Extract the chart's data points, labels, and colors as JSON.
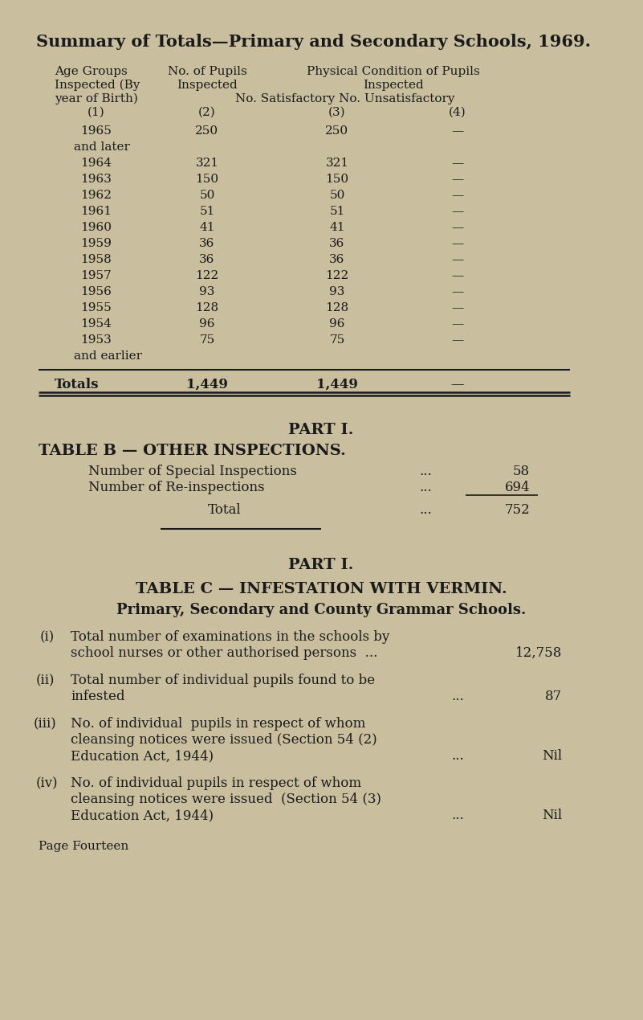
{
  "bg_color": "#c9bf9f",
  "text_color": "#1a1a1a",
  "title": "Summary of Totals—Primary and Secondary Schools, 1969.",
  "table_rows": [
    [
      "1965",
      "250",
      "250",
      "—"
    ],
    [
      "and later",
      "",
      "",
      ""
    ],
    [
      "1964",
      "321",
      "321",
      "—"
    ],
    [
      "1963",
      "150",
      "150",
      "—"
    ],
    [
      "1962",
      "50",
      "50",
      "—"
    ],
    [
      "1961",
      "51",
      "51",
      "—"
    ],
    [
      "1960",
      "41",
      "41",
      "—"
    ],
    [
      "1959",
      "36",
      "36",
      "—"
    ],
    [
      "1958",
      "36",
      "36",
      "—"
    ],
    [
      "1957",
      "122",
      "122",
      "—"
    ],
    [
      "1956",
      "93",
      "93",
      "—"
    ],
    [
      "1955",
      "128",
      "128",
      "—"
    ],
    [
      "1954",
      "96",
      "96",
      "—"
    ],
    [
      "1953",
      "75",
      "75",
      "—"
    ],
    [
      "and earlier",
      "",
      "",
      ""
    ]
  ],
  "totals_row": [
    "Totals",
    "1,449",
    "1,449",
    "—"
  ],
  "part_b_title": "PART I.",
  "part_b_subtitle": "TABLE B — OTHER INSPECTIONS.",
  "part_b_rows": [
    [
      "Number of Special Inspections",
      "...",
      "58"
    ],
    [
      "Number of Re-inspections",
      "...",
      "694"
    ]
  ],
  "part_b_total": [
    "Total",
    "...",
    "752"
  ],
  "part_c_title": "PART I.",
  "part_c_subtitle": "TABLE C — INFESTATION WITH VERMIN.",
  "part_c_subheader": "Primary, Secondary and County Grammar Schools.",
  "footer": "Page Fourteen"
}
